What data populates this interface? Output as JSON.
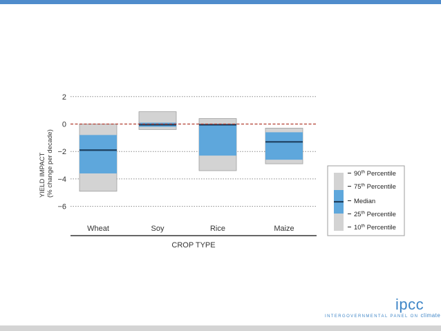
{
  "chart_data": {
    "type": "box",
    "categories": [
      "Wheat",
      "Soy",
      "Rice",
      "Maize"
    ],
    "boxes": [
      {
        "category": "Wheat",
        "p10": -4.9,
        "p25": -3.6,
        "median": -1.9,
        "p75": -0.8,
        "p90": 0.0
      },
      {
        "category": "Soy",
        "p10": -0.4,
        "p25": -0.2,
        "median": -0.05,
        "p75": 0.1,
        "p90": 0.9
      },
      {
        "category": "Rice",
        "p10": -3.4,
        "p25": -2.3,
        "median": -0.05,
        "p75": 0.0,
        "p90": 0.4
      },
      {
        "category": "Maize",
        "p10": -2.9,
        "p25": -2.6,
        "median": -1.3,
        "p75": -0.6,
        "p90": -0.3
      }
    ],
    "xlabel": "CROP TYPE",
    "ylabel": [
      "YIELD IMPACT",
      "(% change per decade)"
    ],
    "yticks": [
      2,
      0,
      -2,
      -4,
      -6
    ],
    "ytick_labels": [
      "2",
      "0",
      "−2",
      "−4",
      "−6"
    ],
    "ylim": [
      -7.9,
      2.8
    ],
    "reference_line": 0,
    "grid": "horizontal dotted",
    "legend_items": [
      {
        "sup": "th",
        "text": " Percentile",
        "prefix": "90"
      },
      {
        "sup": "th",
        "text": " Percentile",
        "prefix": "75"
      },
      {
        "sup": "",
        "text": "",
        "prefix": "Median"
      },
      {
        "sup": "th",
        "text": " Percentile",
        "prefix": "25"
      },
      {
        "sup": "th",
        "text": " Percentile",
        "prefix": "10"
      }
    ],
    "legend_position": "right",
    "colors": {
      "outer_box": "#d3d3d3",
      "outer_box_stroke": "#9e9e9e",
      "inner_box": "#5ea7dc",
      "median": "#1d3f5e",
      "zero_line": "#b03a2e",
      "grid": "#888888"
    }
  },
  "logo": {
    "word": "ipcc",
    "tagline_prefix": "INTERGOVERNMENTAL PANEL ON ",
    "tagline_highlight": "climate change"
  }
}
